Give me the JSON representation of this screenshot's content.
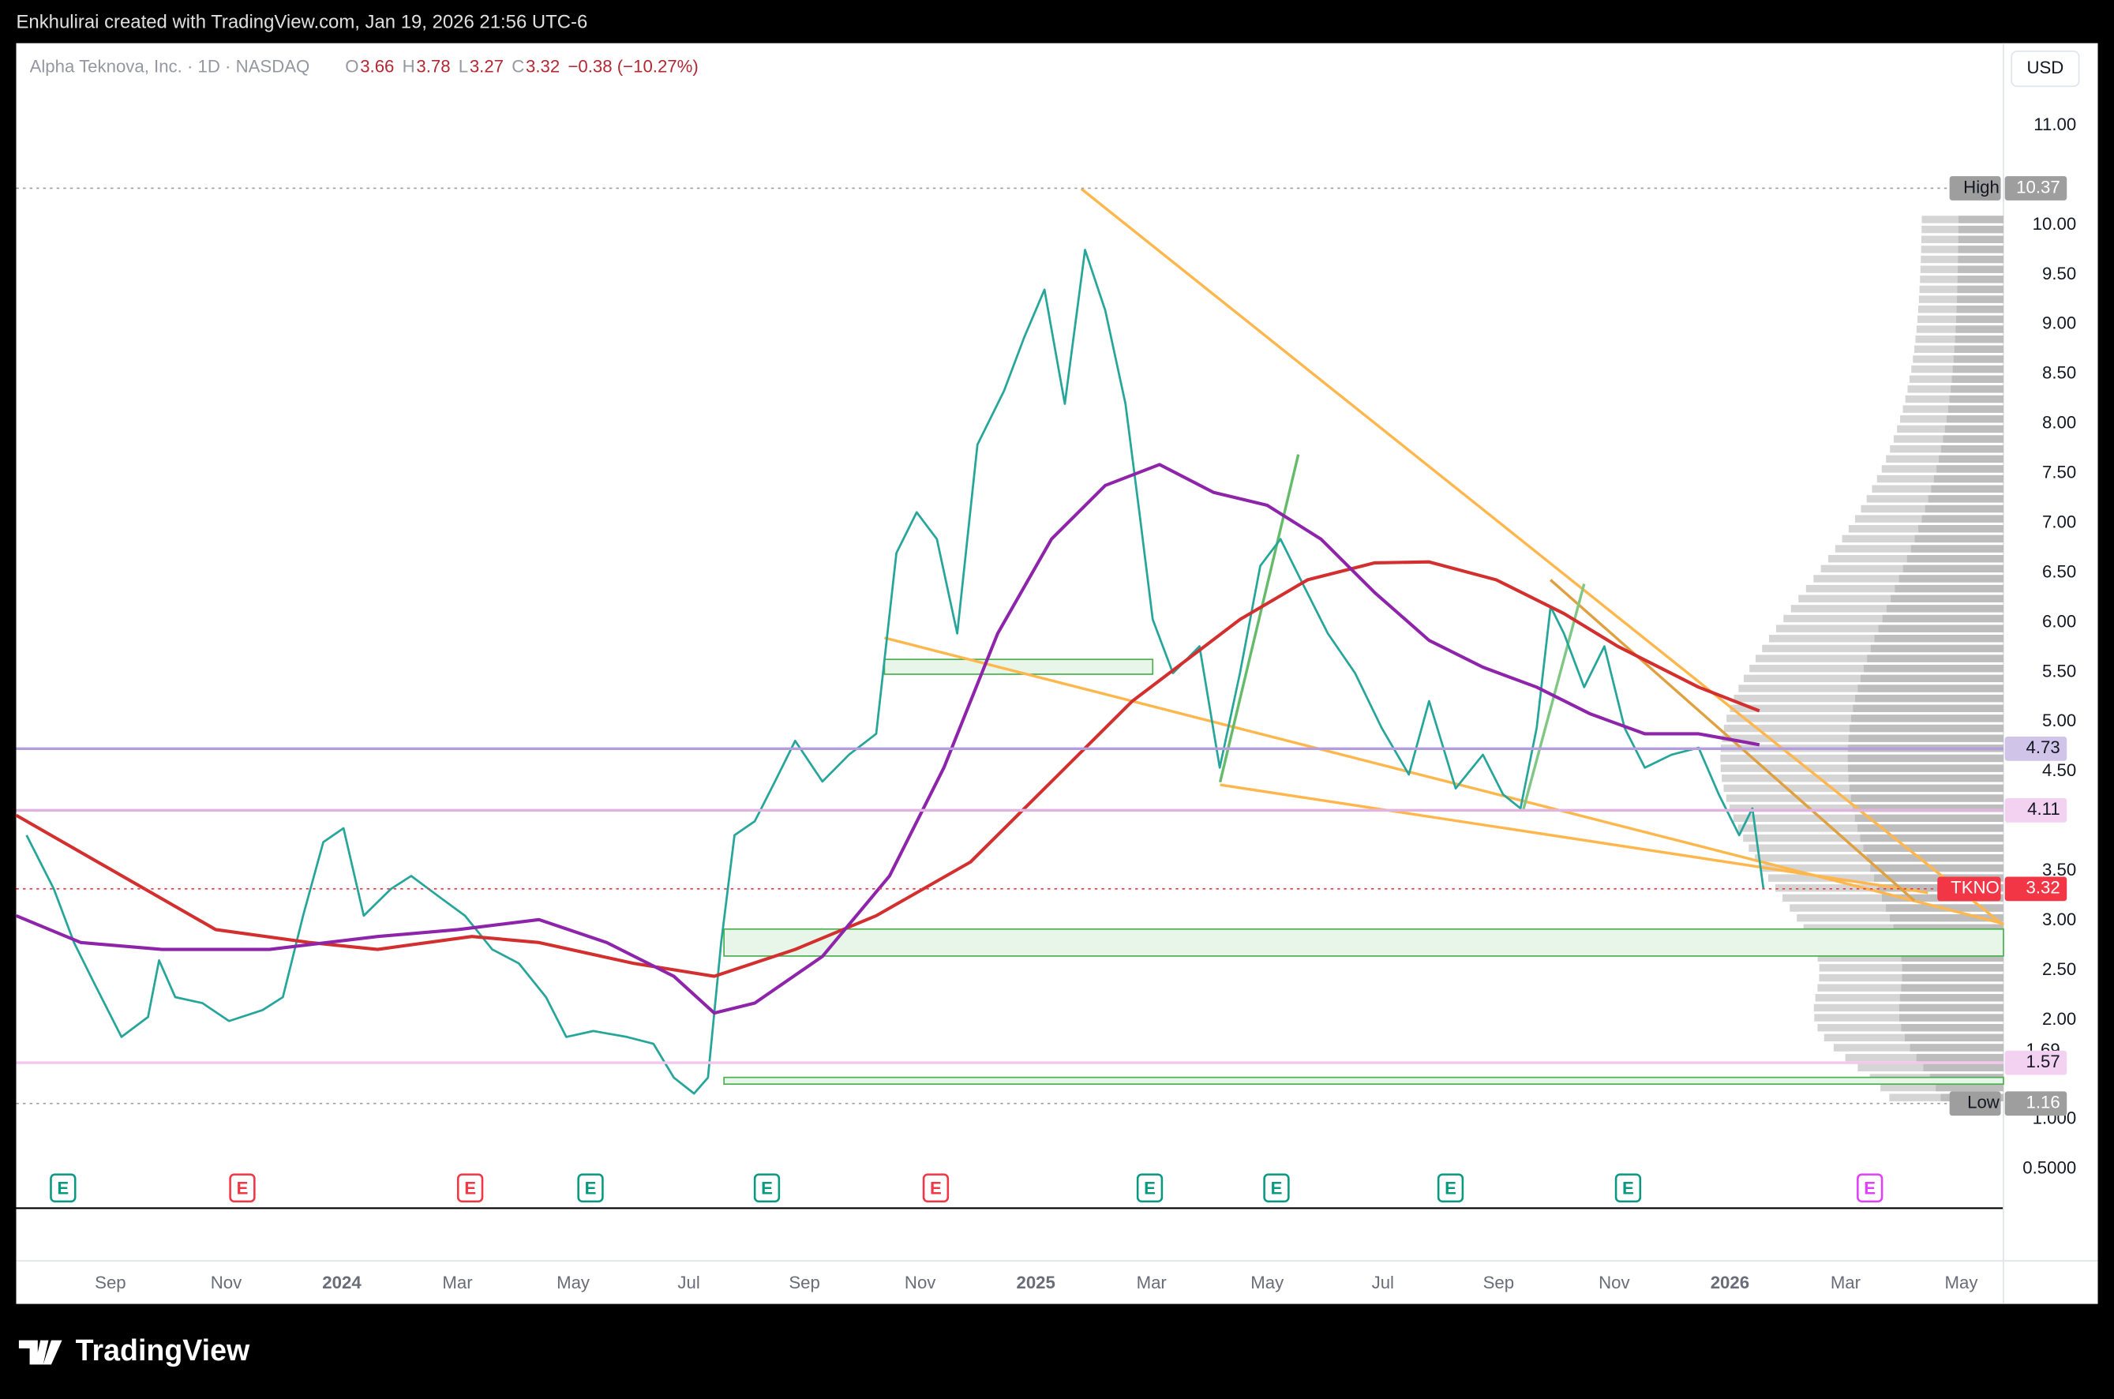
{
  "header": "Enkhulirai created with TradingView.com, Jan 19, 2026 21:56 UTC-6",
  "footer": "TradingView",
  "currency": "USD",
  "chart_data": {
    "type": "line",
    "title": "Alpha Teknova, Inc. · 1D · NASDAQ",
    "ohlc": [
      {
        "label": "O",
        "value": 3.66
      },
      {
        "label": "H",
        "value": 3.78
      },
      {
        "label": "L",
        "value": 3.27
      },
      {
        "label": "C",
        "value": 3.32
      }
    ],
    "change": "−0.38 (−10.27%)",
    "ylim": [
      0.12,
      11.83
    ],
    "yticks": [
      {
        "value": 11,
        "label": "11.00"
      },
      {
        "value": 10,
        "label": "10.00"
      },
      {
        "value": 9.5,
        "label": "9.50"
      },
      {
        "value": 9,
        "label": "9.00"
      },
      {
        "value": 8.5,
        "label": "8.50"
      },
      {
        "value": 8,
        "label": "8.00"
      },
      {
        "value": 7.5,
        "label": "7.50"
      },
      {
        "value": 7,
        "label": "7.00"
      },
      {
        "value": 6.5,
        "label": "6.50"
      },
      {
        "value": 6,
        "label": "6.00"
      },
      {
        "value": 5.5,
        "label": "5.50"
      },
      {
        "value": 5,
        "label": "5.00"
      },
      {
        "value": 4.5,
        "label": "4.50"
      },
      {
        "value": 3.5,
        "label": "3.50"
      },
      {
        "value": 3,
        "label": "3.00"
      },
      {
        "value": 2.5,
        "label": "2.50"
      },
      {
        "value": 2,
        "label": "2.00"
      },
      {
        "value": 1,
        "label": "1.000"
      },
      {
        "value": 0.5,
        "label": "0.5000"
      }
    ],
    "xlim": [
      -1.63,
      32.73
    ],
    "xticks": [
      {
        "value": 0,
        "label": "Sep"
      },
      {
        "value": 2,
        "label": "Nov"
      },
      {
        "value": 4,
        "label": "2024"
      },
      {
        "value": 6,
        "label": "Mar"
      },
      {
        "value": 8,
        "label": "May"
      },
      {
        "value": 10,
        "label": "Jul"
      },
      {
        "value": 12,
        "label": "Sep"
      },
      {
        "value": 14,
        "label": "Nov"
      },
      {
        "value": 16,
        "label": "2025"
      },
      {
        "value": 18,
        "label": "Mar"
      },
      {
        "value": 20,
        "label": "May"
      },
      {
        "value": 22,
        "label": "Jul"
      },
      {
        "value": 24,
        "label": "Sep"
      },
      {
        "value": 26,
        "label": "Nov"
      },
      {
        "value": 28,
        "label": "2026"
      },
      {
        "value": 30,
        "label": "Mar"
      },
      {
        "value": 32,
        "label": "May"
      }
    ],
    "series": [
      {
        "color": "#26a69a",
        "width": 1.6,
        "x": [
          -1.45,
          -0.98,
          -0.63,
          -0.28,
          0.19,
          0.65,
          0.84,
          1.12,
          1.59,
          2.05,
          2.63,
          2.98,
          3.33,
          3.68,
          4.03,
          4.38,
          4.85,
          5.2,
          5.66,
          6.13,
          6.6,
          7.06,
          7.53,
          7.88,
          8.35,
          8.93,
          9.39,
          9.74,
          10.09,
          10.33,
          10.56,
          10.79,
          11.14,
          11.49,
          11.84,
          12.31,
          12.77,
          13.24,
          13.59,
          13.94,
          14.29,
          14.64,
          14.99,
          15.45,
          15.8,
          16.15,
          16.5,
          16.85,
          17.2,
          17.55,
          17.79,
          18.02,
          18.37,
          18.83,
          19.18,
          19.53,
          19.88,
          20.23,
          20.58,
          21.05,
          21.52,
          21.98,
          22.45,
          22.8,
          23.26,
          23.73,
          24.08,
          24.38,
          24.66,
          24.9,
          25.13,
          25.48,
          25.83,
          26.18,
          26.53,
          26.99,
          27.46,
          27.81,
          28.16,
          28.39,
          28.58
        ],
        "values": [
          3.86,
          3.32,
          2.78,
          2.37,
          1.83,
          2.03,
          2.6,
          2.23,
          2.17,
          1.99,
          2.1,
          2.23,
          3.05,
          3.79,
          3.93,
          3.05,
          3.32,
          3.45,
          3.25,
          3.05,
          2.71,
          2.57,
          2.23,
          1.83,
          1.89,
          1.83,
          1.76,
          1.42,
          1.26,
          1.42,
          2.78,
          3.86,
          4.0,
          4.4,
          4.81,
          4.4,
          4.67,
          4.88,
          6.7,
          7.11,
          6.84,
          5.89,
          7.79,
          8.33,
          8.87,
          9.35,
          8.2,
          9.75,
          9.14,
          8.2,
          7.11,
          6.03,
          5.49,
          5.76,
          4.54,
          5.49,
          6.57,
          6.84,
          6.43,
          5.89,
          5.49,
          4.94,
          4.47,
          5.21,
          4.33,
          4.67,
          4.27,
          4.13,
          4.94,
          6.16,
          5.89,
          5.35,
          5.76,
          4.94,
          4.54,
          4.67,
          4.74,
          4.27,
          3.86,
          4.13,
          3.32
        ]
      },
      {
        "color": "#d32f2f",
        "width": 2.4,
        "x": [
          -1.63,
          1.82,
          3.45,
          4.62,
          6.25,
          7.41,
          9.04,
          10.44,
          11.84,
          13.24,
          14.87,
          16.27,
          17.67,
          18.6,
          19.53,
          20.7,
          21.86,
          22.8,
          23.96,
          25.13,
          26.06,
          27.46,
          28.51
        ],
        "values": [
          4.06,
          2.91,
          2.78,
          2.71,
          2.84,
          2.78,
          2.57,
          2.44,
          2.71,
          3.05,
          3.59,
          4.4,
          5.21,
          5.62,
          6.03,
          6.43,
          6.6,
          6.61,
          6.43,
          6.09,
          5.76,
          5.35,
          5.11
        ]
      },
      {
        "color": "#8e24aa",
        "width": 2.4,
        "x": [
          -1.63,
          -0.51,
          0.89,
          2.75,
          4.62,
          6.01,
          7.41,
          8.58,
          9.74,
          10.44,
          11.14,
          12.31,
          13.47,
          14.41,
          15.34,
          16.27,
          17.2,
          18.14,
          19.07,
          20.0,
          20.93,
          21.86,
          22.8,
          23.73,
          24.66,
          25.59,
          26.53,
          27.46,
          28.51
        ],
        "values": [
          3.05,
          2.78,
          2.71,
          2.71,
          2.84,
          2.91,
          3.01,
          2.78,
          2.44,
          2.07,
          2.17,
          2.64,
          3.45,
          4.54,
          5.89,
          6.84,
          7.38,
          7.59,
          7.31,
          7.18,
          6.84,
          6.3,
          5.82,
          5.55,
          5.35,
          5.08,
          4.88,
          4.88,
          4.77
        ]
      }
    ],
    "price_labels": [
      {
        "label": "High",
        "value": 10.37,
        "color": "#9e9e9e",
        "line": "#9e9e9e",
        "dash": true
      },
      {
        "value": 4.73,
        "color": "#d1c4e9",
        "line": "#b39ddb"
      },
      {
        "value": 4.11,
        "color": "#f3d1f0",
        "line": "#e1b4e0"
      },
      {
        "label": "TKNO",
        "value": 3.32,
        "color": "#f23645",
        "line": "#f23645",
        "dash": true
      },
      {
        "value": 1.69
      },
      {
        "value": 1.57,
        "color": "#f3d1f0",
        "line": "#f3c7ee"
      },
      {
        "label": "Low",
        "value": 1.16,
        "color": "#9e9e9e",
        "line": "#9e9e9e",
        "dash": true
      }
    ],
    "earnings": [
      {
        "x": -0.82,
        "label": "E",
        "color": "#089981"
      },
      {
        "x": 2.28,
        "label": "E",
        "color": "#f23645"
      },
      {
        "x": 6.22,
        "label": "E",
        "color": "#f23645"
      },
      {
        "x": 8.3,
        "label": "E",
        "color": "#089981"
      },
      {
        "x": 11.35,
        "label": "E",
        "color": "#089981"
      },
      {
        "x": 14.27,
        "label": "E",
        "color": "#f23645"
      },
      {
        "x": 17.97,
        "label": "E",
        "color": "#089981"
      },
      {
        "x": 20.16,
        "label": "E",
        "color": "#089981"
      },
      {
        "x": 23.17,
        "label": "E",
        "color": "#089981"
      },
      {
        "x": 26.24,
        "label": "E",
        "color": "#089981"
      },
      {
        "x": 30.42,
        "label": "E",
        "color": "#e040fb"
      }
    ]
  }
}
